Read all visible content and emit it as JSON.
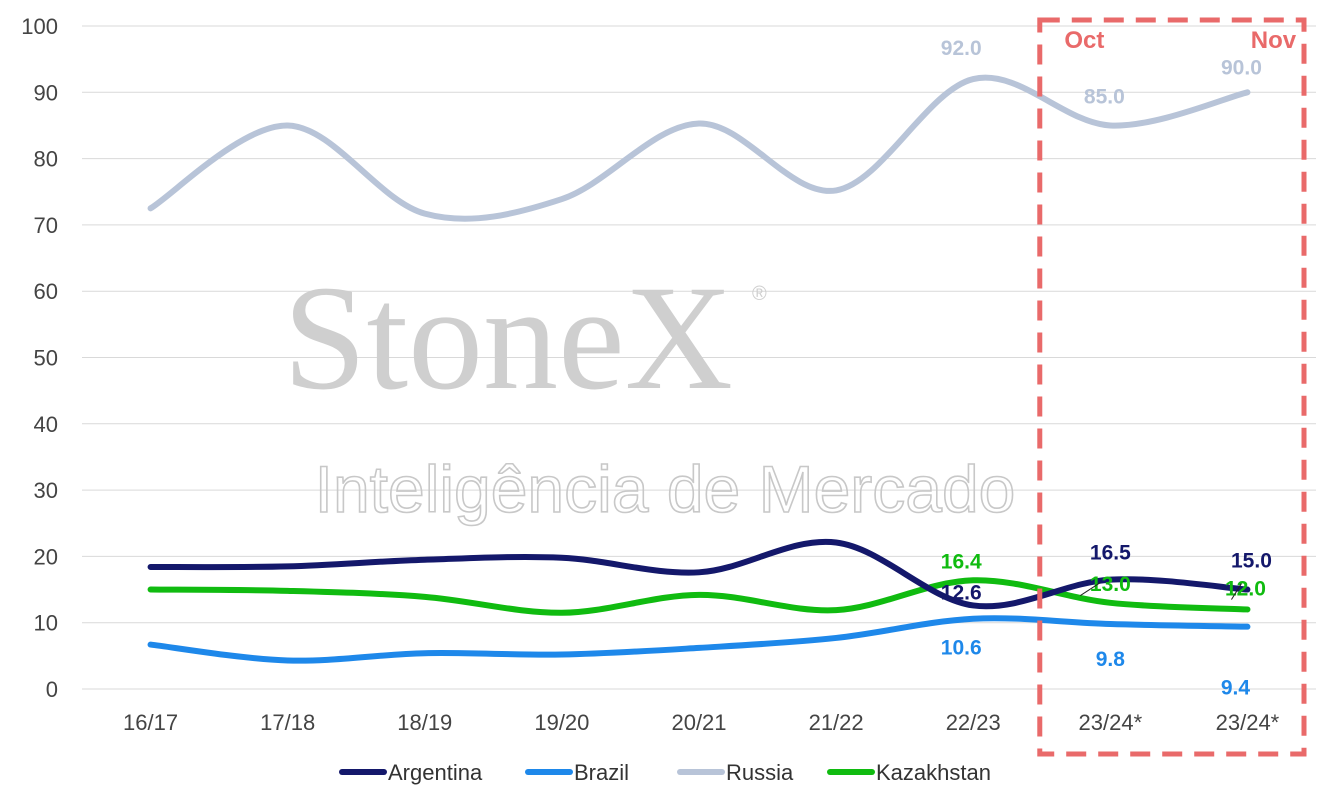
{
  "watermark": {
    "brand": "StoneX",
    "registered": "®",
    "tagline": "Inteligência de Mercado"
  },
  "chart_data": {
    "type": "line",
    "categories": [
      "16/17",
      "17/18",
      "18/19",
      "19/20",
      "20/21",
      "21/22",
      "22/23",
      "23/24*",
      "23/24*"
    ],
    "ylim": [
      0,
      100
    ],
    "yticks": [
      0,
      10,
      20,
      30,
      40,
      50,
      60,
      70,
      80,
      90,
      100
    ],
    "grid": true,
    "legend_position": "bottom",
    "highlight_box": {
      "from_index": 7,
      "to_index": 8,
      "labels": [
        "Oct",
        "Nov"
      ],
      "color": "#e96a6a"
    },
    "series": [
      {
        "name": "Argentina",
        "color": "#14186b",
        "values": [
          18.4,
          18.5,
          19.5,
          19.8,
          17.6,
          22.1,
          12.6,
          16.5,
          15.0
        ],
        "labels": [
          {
            "index": 6,
            "text": "12.6"
          },
          {
            "index": 7,
            "text": "16.5"
          },
          {
            "index": 8,
            "text": "15.0"
          }
        ]
      },
      {
        "name": "Brazil",
        "color": "#1e88ea",
        "values": [
          6.7,
          4.3,
          5.4,
          5.2,
          6.2,
          7.7,
          10.6,
          9.8,
          9.4
        ],
        "labels": [
          {
            "index": 6,
            "text": "10.6"
          },
          {
            "index": 7,
            "text": "9.8"
          },
          {
            "index": 8,
            "text": "9.4"
          }
        ]
      },
      {
        "name": "Russia",
        "color": "#b8c4d8",
        "values": [
          72.5,
          85.0,
          71.7,
          73.9,
          85.3,
          75.2,
          92.0,
          85.0,
          90.0
        ],
        "labels": [
          {
            "index": 6,
            "text": "92.0"
          },
          {
            "index": 7,
            "text": "85.0"
          },
          {
            "index": 8,
            "text": "90.0"
          }
        ]
      },
      {
        "name": "Kazakhstan",
        "color": "#10bb10",
        "values": [
          15.0,
          14.8,
          13.9,
          11.5,
          14.2,
          11.9,
          16.4,
          13.0,
          12.0
        ],
        "labels": [
          {
            "index": 6,
            "text": "16.4"
          },
          {
            "index": 7,
            "text": "13.0"
          },
          {
            "index": 8,
            "text": "12.0"
          }
        ]
      }
    ]
  }
}
